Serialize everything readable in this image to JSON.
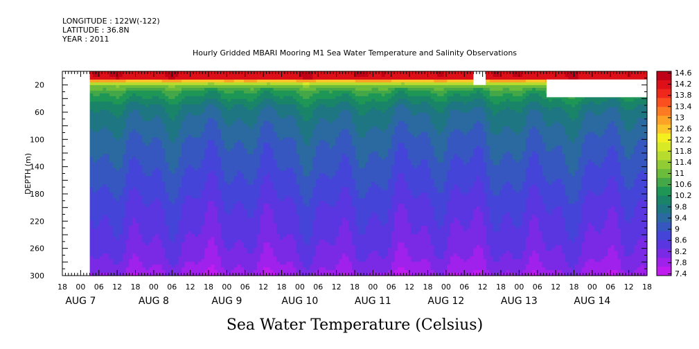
{
  "header": {
    "longitude": "LONGITUDE : 122W(-122)",
    "latitude": "LATITUDE : 36.8N",
    "year": "YEAR : 2011",
    "title": "Hourly Gridded MBARI Mooring M1 Sea Water Temperature and Salinity Observations"
  },
  "chart_data": {
    "type": "heatmap",
    "title": "Hourly Gridded MBARI Mooring M1 Sea Water Temperature and Salinity Observations",
    "variable": "Sea Water Temperature (Celsius)",
    "ylabel": "DEPTH (m)",
    "ylim": [
      300,
      0
    ],
    "y_ticks": [
      20,
      60,
      100,
      140,
      180,
      220,
      260,
      300
    ],
    "x_start": "2011-08-06T18:00",
    "x_end": "2011-08-14T18:00",
    "x_tick_labels": [
      "18",
      "00",
      "06",
      "12",
      "18",
      "00",
      "06",
      "12",
      "18",
      "00",
      "06",
      "12",
      "18",
      "00",
      "06",
      "12",
      "18",
      "00",
      "06",
      "12",
      "18",
      "00",
      "06",
      "12",
      "18",
      "00",
      "06",
      "12",
      "18",
      "00",
      "06",
      "12",
      "18"
    ],
    "x_day_labels": [
      {
        "label": "AUG 7",
        "time": "2011-08-07T00:00"
      },
      {
        "label": "AUG 8",
        "time": "2011-08-08T00:00"
      },
      {
        "label": "AUG 9",
        "time": "2011-08-09T00:00"
      },
      {
        "label": "AUG 10",
        "time": "2011-08-10T00:00"
      },
      {
        "label": "AUG 11",
        "time": "2011-08-11T00:00"
      },
      {
        "label": "AUG 12",
        "time": "2011-08-12T00:00"
      },
      {
        "label": "AUG 13",
        "time": "2011-08-13T00:00"
      },
      {
        "label": "AUG 14",
        "time": "2011-08-14T00:00"
      }
    ],
    "data_start": "2011-08-07T03:00",
    "profile_depths": [
      10,
      15,
      20,
      25,
      30,
      40,
      50,
      60,
      80,
      100,
      130,
      160,
      200,
      240,
      270,
      290,
      300
    ],
    "profile_temps": [
      14.2,
      12.4,
      11.2,
      10.8,
      10.5,
      10.2,
      9.9,
      9.7,
      9.5,
      9.3,
      9.1,
      8.9,
      8.6,
      8.4,
      8.2,
      8.0,
      7.8
    ],
    "colorbar_levels": [
      "14.6",
      "14.2",
      "13.8",
      "13.4",
      "13",
      "12.6",
      "12.2",
      "11.8",
      "11.4",
      "11",
      "10.6",
      "10.2",
      "9.8",
      "9.4",
      "9",
      "8.6",
      "8.2",
      "7.8",
      "7.4"
    ],
    "colorbar_colors": [
      "#c00016",
      "#dd101a",
      "#f0281c",
      "#fa4f1e",
      "#fc7a22",
      "#fca226",
      "#fcc62a",
      "#f4f020",
      "#d8ea26",
      "#b8dc2e",
      "#92cc34",
      "#6cbc3c",
      "#44a848",
      "#1e9656",
      "#1a8468",
      "#1e7682",
      "#2a6aa0",
      "#3656c0",
      "#4444d8",
      "#5a36e0",
      "#7a2ae4",
      "#a020ec",
      "#c01cf0"
    ],
    "missing_regions": [
      {
        "t_from": "2011-08-12T09:00",
        "t_to": "2011-08-12T13:00",
        "depth_from": 0,
        "depth_to": 20
      },
      {
        "t_from": "2011-08-13T09:00",
        "t_to": "2011-08-14T18:00",
        "depth_from": 12,
        "depth_to": 38
      }
    ]
  }
}
